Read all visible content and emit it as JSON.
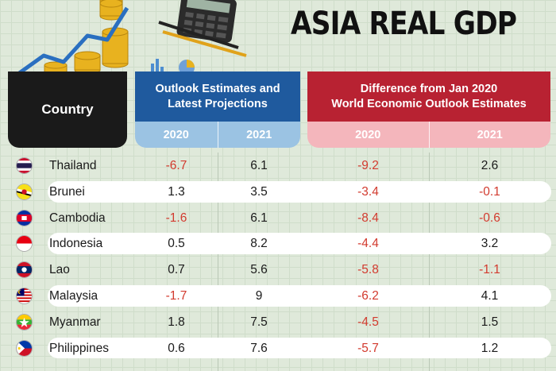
{
  "title": "ASIA REAL GDP",
  "chart_data": {
    "type": "table",
    "title": "ASIA REAL GDP",
    "headers": {
      "country": "Country",
      "group1": "Outlook Estimates and\nLatest Projections",
      "group2": "Difference from Jan 2020\nWorld Economic Outlook Estimates",
      "years": [
        "2020",
        "2021",
        "2020",
        "2021"
      ]
    },
    "rows": [
      {
        "country": "Thailand",
        "flag": "thailand-flag",
        "values": [
          -6.7,
          6.1,
          -9.2,
          2.6
        ]
      },
      {
        "country": "Brunei",
        "flag": "brunei-flag",
        "values": [
          1.3,
          3.5,
          -3.4,
          -0.1
        ]
      },
      {
        "country": "Cambodia",
        "flag": "cambodia-flag",
        "values": [
          -1.6,
          6.1,
          -8.4,
          -0.6
        ]
      },
      {
        "country": "Indonesia",
        "flag": "indonesia-flag",
        "values": [
          0.5,
          8.2,
          -4.4,
          3.2
        ]
      },
      {
        "country": "Lao",
        "flag": "lao-flag",
        "values": [
          0.7,
          5.6,
          -5.8,
          -1.1
        ]
      },
      {
        "country": "Malaysia",
        "flag": "malaysia-flag",
        "values": [
          -1.7,
          9,
          -6.2,
          4.1
        ]
      },
      {
        "country": "Myanmar",
        "flag": "myanmar-flag",
        "values": [
          1.8,
          7.5,
          -4.5,
          1.5
        ]
      },
      {
        "country": "Philippines",
        "flag": "philippines-flag",
        "values": [
          0.6,
          7.6,
          -5.7,
          1.2
        ]
      }
    ],
    "colors": {
      "negative": "#d23a2e",
      "blue_header": "#1f5a9e",
      "red_header": "#b82232"
    }
  }
}
